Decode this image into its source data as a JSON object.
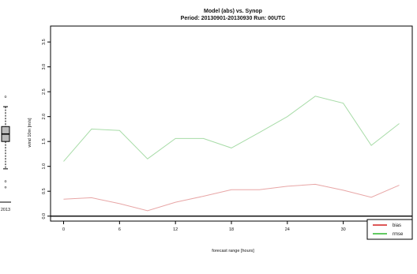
{
  "chart_data": [
    {
      "type": "line",
      "title": "Model (abs) vs. Synop",
      "subtitle": "Period: 20130901-20130930 Run: 00UTC",
      "xlabel": "forecast range [hours]",
      "ylabel": "wind 10m [m/s]",
      "x": [
        0,
        3,
        6,
        9,
        12,
        15,
        18,
        21,
        24,
        27,
        30,
        33,
        36
      ],
      "xticks": [
        0,
        6,
        12,
        18,
        24,
        30,
        36
      ],
      "yticks": [
        "0.0",
        "0.5",
        "1.0",
        "1.5",
        "2.0",
        "2.5",
        "3.0",
        "3.5"
      ],
      "xlim": [
        -1.4,
        37.4
      ],
      "ylim": [
        -0.1,
        3.82
      ],
      "grid": false,
      "legend": "bottom-right",
      "zero_line": 0,
      "series": [
        {
          "name": "bias",
          "color": "#e8a6a6",
          "legend_color": "#d42020",
          "values": [
            0.34,
            0.37,
            0.25,
            0.11,
            0.28,
            0.4,
            0.53,
            0.53,
            0.6,
            0.64,
            0.52,
            0.38,
            0.62
          ]
        },
        {
          "name": "rmse",
          "color": "#a8dca8",
          "legend_color": "#2eb82e",
          "values": [
            1.1,
            1.75,
            1.72,
            1.15,
            1.56,
            1.56,
            1.37,
            1.68,
            2.0,
            2.41,
            2.27,
            1.42,
            1.86
          ]
        }
      ]
    },
    {
      "type": "box",
      "category": "2013",
      "ylim": [
        -0.1,
        3.82
      ],
      "box": {
        "whisker_low": 0.95,
        "q1": 1.5,
        "median": 1.65,
        "q3": 1.8,
        "whisker_high": 2.2,
        "outliers": [
          2.4,
          0.7,
          0.58
        ],
        "color": "#bbbbbb"
      }
    }
  ]
}
